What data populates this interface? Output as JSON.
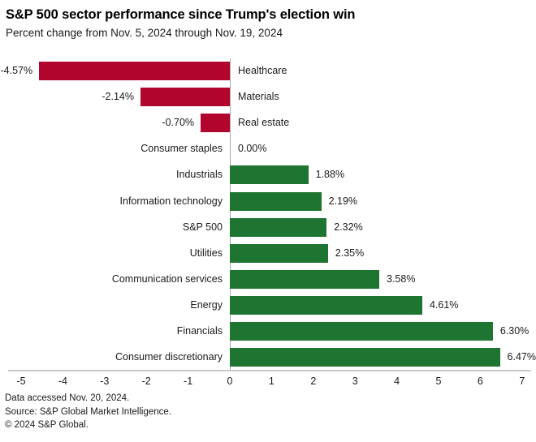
{
  "header": {
    "title": "S&P 500 sector performance since Trump's election win",
    "subtitle": "Percent change from Nov. 5, 2024 through Nov. 19, 2024"
  },
  "chart_data": {
    "type": "bar",
    "orientation": "horizontal",
    "title": "S&P 500 sector performance since Trump's election win",
    "subtitle": "Percent change from Nov. 5, 2024 through Nov. 19, 2024",
    "categories": [
      "Healthcare",
      "Materials",
      "Real estate",
      "Consumer staples",
      "Industrials",
      "Information technology",
      "S&P 500",
      "Utilities",
      "Communication services",
      "Energy",
      "Financials",
      "Consumer discretionary"
    ],
    "values": [
      -4.57,
      -2.14,
      -0.7,
      0.0,
      1.88,
      2.19,
      2.32,
      2.35,
      3.58,
      4.61,
      6.3,
      6.47
    ],
    "value_labels": [
      "-4.57%",
      "-2.14%",
      "-0.70%",
      "0.00%",
      "1.88%",
      "2.19%",
      "2.32%",
      "2.35%",
      "3.58%",
      "4.61%",
      "6.30%",
      "6.47%"
    ],
    "xlabel": "",
    "ylabel": "",
    "xlim": [
      -5,
      7
    ],
    "xticks": [
      -5,
      -4,
      -3,
      -2,
      -1,
      0,
      1,
      2,
      3,
      4,
      5,
      6,
      7
    ],
    "grid": "zero-line-only",
    "legend": "none",
    "colors": {
      "negative_bar": "#B2052E",
      "positive_bar": "#1E7431",
      "zero_line": "#a9a9a9",
      "axis_line": "#c9c9c9",
      "text": "#1a1a1a"
    }
  },
  "footer": {
    "lines": [
      "Data accessed Nov. 20, 2024.",
      "Source: S&P Global Market Intelligence.",
      "© 2024 S&P Global."
    ]
  }
}
